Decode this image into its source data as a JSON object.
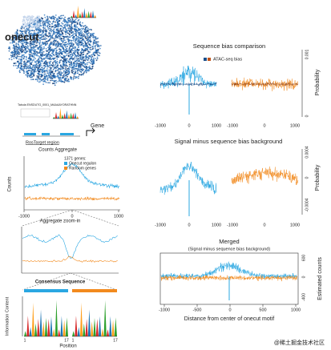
{
  "left": {
    "tsne_label": "onecut",
    "track_title": "Tabula ENSDUTG_0001_MAAAAYORATHNN",
    "gene": "Gene",
    "region": "RosTarget region",
    "counts": {
      "title": "Counts Aggregate",
      "legend_title": "1371 genes:",
      "legend": [
        "Onecut regulon",
        "Random genes"
      ],
      "ylabel": "Counts",
      "xticks": [
        "-1000",
        "0",
        "1000"
      ]
    },
    "zoom": {
      "title": "Aggregate zoom-in"
    },
    "consensus": {
      "title": "Consensus Sequence",
      "ylabel": "Information Content",
      "xlabel": "Position",
      "ticks": [
        "1",
        "17",
        "1",
        "17"
      ]
    }
  },
  "right": {
    "bias": {
      "title": "Sequence bias comparison",
      "legend": "ATAC-seq bias",
      "ylabel": "Probability",
      "yticks": [
        "0.001",
        "0"
      ],
      "xticks": [
        "-1000",
        "0",
        "1000",
        "-1000",
        "0",
        "1000"
      ]
    },
    "minus": {
      "title": "Signal minus sequence bias background",
      "ylabel": "Probability",
      "yticks": [
        "0.0004",
        "0",
        "-0.0004"
      ],
      "xticks": [
        "-1000",
        "0",
        "1000",
        "-1000",
        "0",
        "1000"
      ]
    },
    "merged": {
      "title": "Merged",
      "subtitle": "(Signal minus sequence bias background)",
      "ylabel": "Estimated counts",
      "yticks": [
        "600",
        "0",
        "-400"
      ],
      "xticks": [
        "-1000",
        "-500",
        "0",
        "500",
        "1000"
      ],
      "xlabel": "Distance from center of onecut motif"
    }
  },
  "watermark": "@稀土掘金技术社区"
}
